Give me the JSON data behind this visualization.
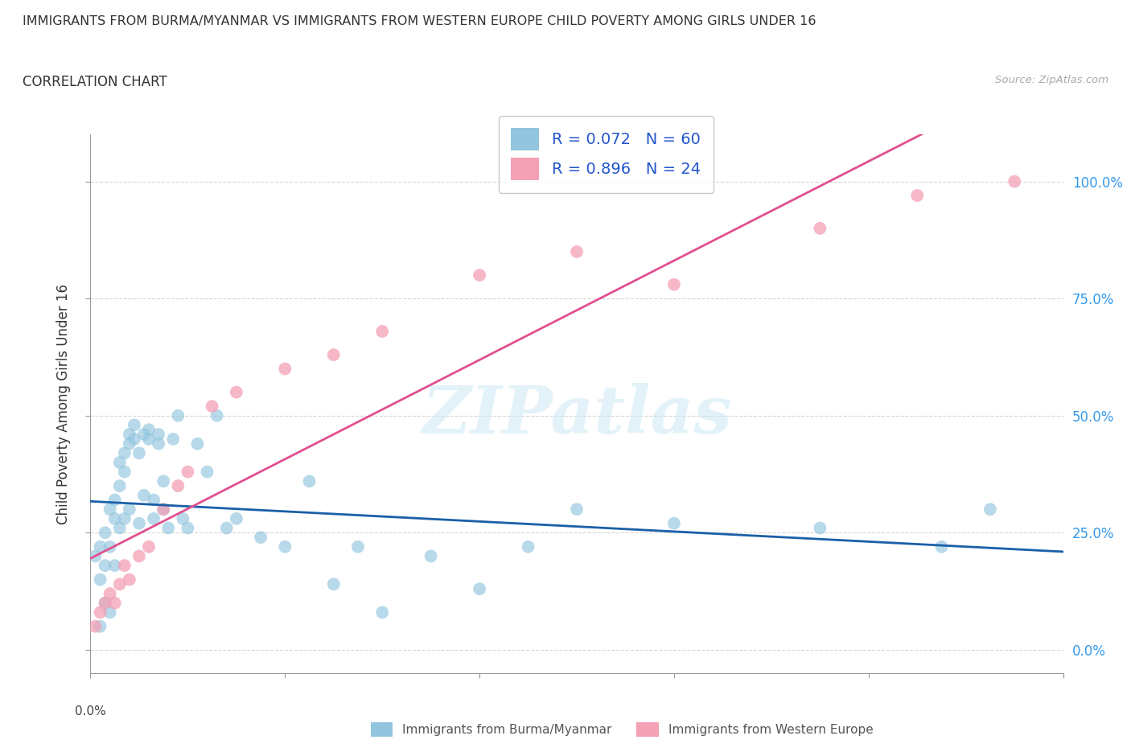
{
  "title": "IMMIGRANTS FROM BURMA/MYANMAR VS IMMIGRANTS FROM WESTERN EUROPE CHILD POVERTY AMONG GIRLS UNDER 16",
  "subtitle": "CORRELATION CHART",
  "source": "Source: ZipAtlas.com",
  "ylabel": "Child Poverty Among Girls Under 16",
  "watermark": "ZIPatlas",
  "r_burma": 0.072,
  "n_burma": 60,
  "r_western": 0.896,
  "n_western": 24,
  "color_burma": "#92c5de",
  "color_western": "#f4a0b5",
  "line_color_burma": "#1a5fa8",
  "line_color_western": "#e05090",
  "background_color": "#ffffff",
  "grid_color": "#cccccc",
  "ytick_labels": [
    "0.0%",
    "25.0%",
    "50.0%",
    "75.0%",
    "100.0%"
  ],
  "ytick_values": [
    0.0,
    0.25,
    0.5,
    0.75,
    1.0
  ],
  "xlim": [
    0.0,
    0.2
  ],
  "ylim": [
    -0.05,
    1.1
  ],
  "legend_label_burma": "Immigrants from Burma/Myanmar",
  "legend_label_western": "Immigrants from Western Europe",
  "burma_x": [
    0.001,
    0.002,
    0.002,
    0.003,
    0.003,
    0.003,
    0.004,
    0.004,
    0.005,
    0.005,
    0.005,
    0.006,
    0.006,
    0.006,
    0.007,
    0.007,
    0.007,
    0.008,
    0.008,
    0.008,
    0.009,
    0.009,
    0.01,
    0.01,
    0.011,
    0.011,
    0.012,
    0.012,
    0.013,
    0.013,
    0.014,
    0.014,
    0.015,
    0.015,
    0.016,
    0.017,
    0.018,
    0.019,
    0.02,
    0.022,
    0.024,
    0.026,
    0.028,
    0.03,
    0.035,
    0.04,
    0.045,
    0.05,
    0.055,
    0.06,
    0.07,
    0.08,
    0.09,
    0.1,
    0.12,
    0.15,
    0.175,
    0.185,
    0.002,
    0.004
  ],
  "burma_y": [
    0.2,
    0.15,
    0.22,
    0.18,
    0.25,
    0.1,
    0.3,
    0.22,
    0.28,
    0.32,
    0.18,
    0.26,
    0.35,
    0.4,
    0.38,
    0.42,
    0.28,
    0.44,
    0.46,
    0.3,
    0.45,
    0.48,
    0.27,
    0.42,
    0.46,
    0.33,
    0.45,
    0.47,
    0.28,
    0.32,
    0.44,
    0.46,
    0.3,
    0.36,
    0.26,
    0.45,
    0.5,
    0.28,
    0.26,
    0.44,
    0.38,
    0.5,
    0.26,
    0.28,
    0.24,
    0.22,
    0.36,
    0.14,
    0.22,
    0.08,
    0.2,
    0.13,
    0.22,
    0.3,
    0.27,
    0.26,
    0.22,
    0.3,
    0.05,
    0.08
  ],
  "western_x": [
    0.001,
    0.002,
    0.003,
    0.004,
    0.005,
    0.006,
    0.007,
    0.008,
    0.01,
    0.012,
    0.015,
    0.018,
    0.02,
    0.025,
    0.03,
    0.04,
    0.05,
    0.06,
    0.08,
    0.1,
    0.12,
    0.15,
    0.17,
    0.19
  ],
  "western_y": [
    0.05,
    0.08,
    0.1,
    0.12,
    0.1,
    0.14,
    0.18,
    0.15,
    0.2,
    0.22,
    0.3,
    0.35,
    0.38,
    0.52,
    0.55,
    0.6,
    0.63,
    0.68,
    0.8,
    0.85,
    0.78,
    0.9,
    0.97,
    1.0
  ]
}
